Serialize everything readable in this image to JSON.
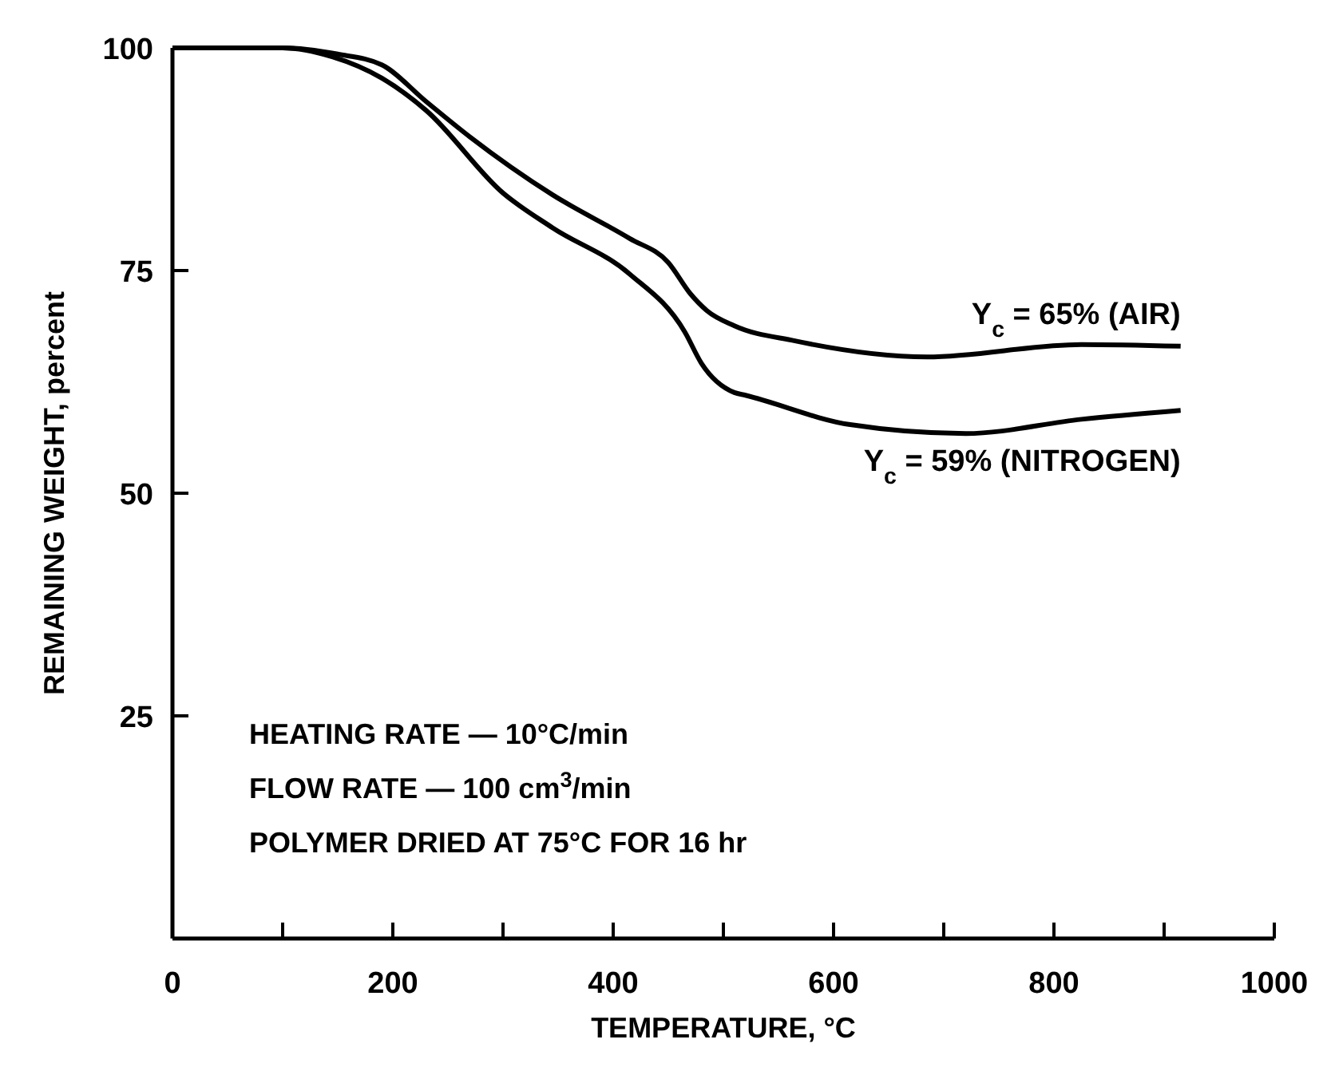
{
  "chart_data": {
    "type": "line",
    "xlabel": "TEMPERATURE, °C",
    "ylabel": "REMAINING WEIGHT, percent",
    "xlim": [
      0,
      1000
    ],
    "ylim": [
      0,
      100
    ],
    "xticks": [
      0,
      {
        "value": 100,
        "label": null
      },
      200,
      {
        "value": 300,
        "label": null
      },
      400,
      {
        "value": 500,
        "label": null
      },
      600,
      {
        "value": 700,
        "label": null
      },
      800,
      {
        "value": 900,
        "label": null
      },
      1000
    ],
    "yticks": [
      25,
      50,
      75,
      100
    ],
    "grid": false,
    "marker": "none",
    "line_style": "solid",
    "series": [
      {
        "name": "Y$_{c}$ = 65% (AIR)",
        "color": "#000000",
        "x": [
          0,
          100,
          150,
          190,
          230,
          270,
          345,
          415,
          450,
          470,
          485,
          510,
          565,
          685,
          825,
          915
        ],
        "values": [
          100,
          100,
          99.3,
          98.1,
          94,
          90,
          83.5,
          78.6,
          75.9,
          72.4,
          70.5,
          68.8,
          67.1,
          65.3,
          66.7,
          66.5
        ]
      },
      {
        "name": "Y$_{c}$ = 59% (NITROGEN)",
        "color": "#000000",
        "x": [
          0,
          100,
          145,
          190,
          230,
          300,
          345,
          415,
          465,
          480,
          510,
          520,
          615,
          720,
          825,
          915
        ],
        "values": [
          100,
          100,
          99,
          96.6,
          93,
          83.7,
          79.8,
          74.6,
          68.1,
          64.6,
          61.3,
          61,
          57.7,
          56.7,
          58.3,
          59.3
        ]
      }
    ],
    "annotations": [
      "HEATING RATE — 10°C/min",
      "FLOW RATE — 100 cm$^{3}$/min",
      "POLYMER DRIED AT 75°C FOR 16 hr"
    ]
  }
}
